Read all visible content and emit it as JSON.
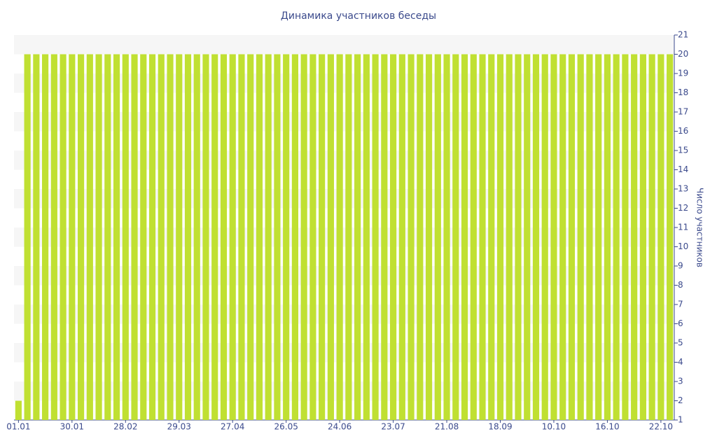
{
  "chart_data": {
    "type": "bar",
    "title": "Динамика участников беседы",
    "y_label": "Число участников",
    "categories": [
      "01.01",
      null,
      null,
      null,
      null,
      null,
      "30.01",
      null,
      null,
      null,
      null,
      null,
      "28.02",
      null,
      null,
      null,
      null,
      null,
      "29.03",
      null,
      null,
      null,
      null,
      null,
      "27.04",
      null,
      null,
      null,
      null,
      null,
      "26.05",
      null,
      null,
      null,
      null,
      null,
      "24.06",
      null,
      null,
      null,
      null,
      null,
      "23.07",
      null,
      null,
      null,
      null,
      null,
      "21.08",
      null,
      null,
      null,
      null,
      null,
      "18.09",
      null,
      null,
      null,
      null,
      null,
      "10.10",
      null,
      null,
      null,
      null,
      null,
      "16.10",
      null,
      null,
      null,
      null,
      null,
      "22.10",
      null
    ],
    "values": [
      2,
      20,
      20,
      20,
      20,
      20,
      20,
      20,
      20,
      20,
      20,
      20,
      20,
      20,
      20,
      20,
      20,
      20,
      20,
      20,
      20,
      20,
      20,
      20,
      20,
      20,
      20,
      20,
      20,
      20,
      20,
      20,
      20,
      20,
      20,
      20,
      20,
      20,
      20,
      20,
      20,
      20,
      20,
      20,
      20,
      20,
      20,
      20,
      20,
      20,
      20,
      20,
      20,
      20,
      20,
      20,
      20,
      20,
      20,
      20,
      20,
      20,
      20,
      20,
      20,
      20,
      20,
      20,
      20,
      20,
      20,
      20,
      20,
      20
    ],
    "color": "#c0e032",
    "ylim": [
      1,
      21
    ],
    "yticks": [
      1,
      2,
      3,
      4,
      5,
      6,
      7,
      8,
      9,
      10,
      11,
      12,
      13,
      14,
      15,
      16,
      17,
      18,
      19,
      20,
      21
    ],
    "y_axis_side": "right",
    "banded_background": true
  }
}
